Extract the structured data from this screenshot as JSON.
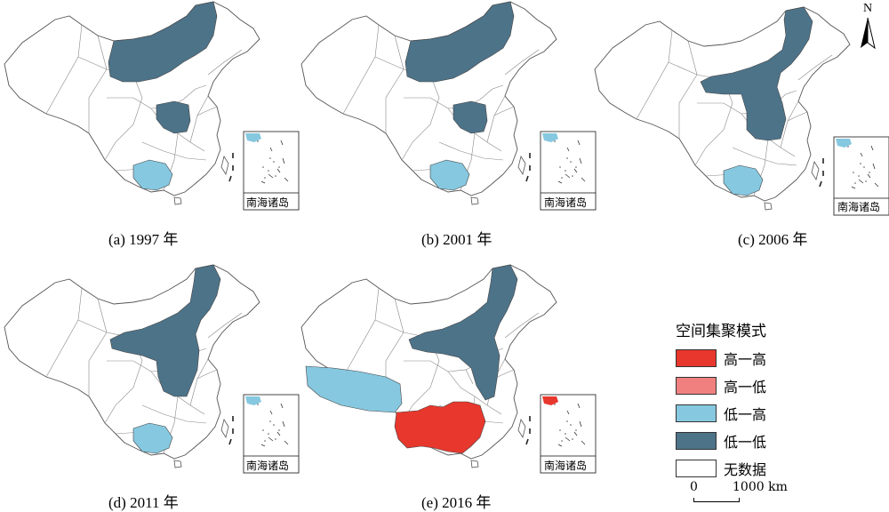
{
  "legend": {
    "title": "空间集聚模式",
    "items": [
      {
        "label": "高一高",
        "color": "#e8372d"
      },
      {
        "label": "高一低",
        "color": "#f08080"
      },
      {
        "label": "低一高",
        "color": "#86c8e0"
      },
      {
        "label": "低一低",
        "color": "#4d7389"
      },
      {
        "label": "无数据",
        "color": "#ffffff"
      }
    ]
  },
  "inset_label": "南海诸岛",
  "north_label": "N",
  "scale": {
    "zero": "0",
    "distance": "1000 km"
  },
  "panels": [
    {
      "caption": "(a) 1997 年"
    },
    {
      "caption": "(b) 2001 年"
    },
    {
      "caption": "(c) 2006 年"
    },
    {
      "caption": "(d) 2011 年"
    },
    {
      "caption": "(e) 2016 年"
    }
  ]
}
